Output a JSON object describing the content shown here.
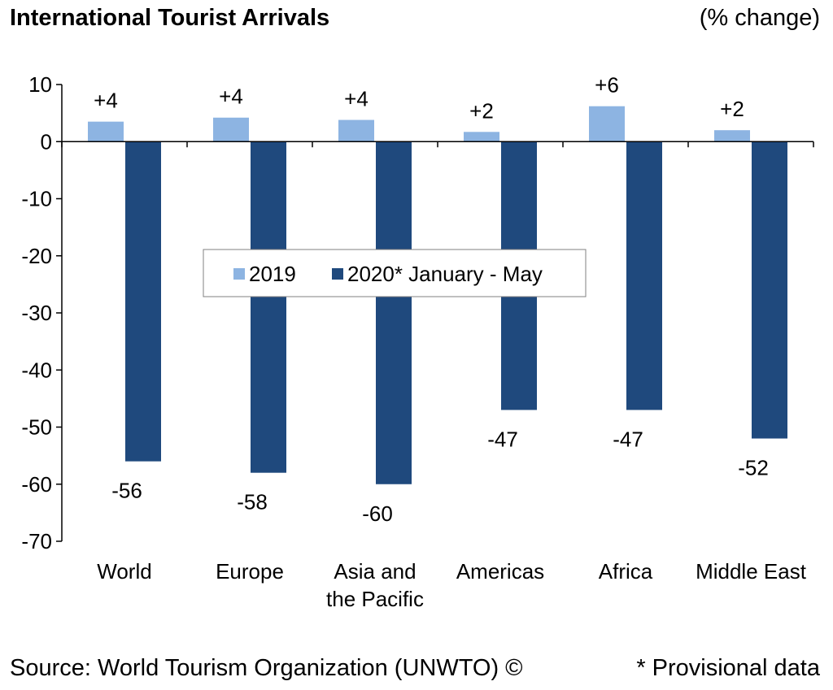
{
  "header": {
    "title": "International Tourist Arrivals",
    "unit": "(% change)"
  },
  "footer": {
    "source": "Source: World Tourism Organization (UNWTO) ©",
    "note": "* Provisional data"
  },
  "colors": {
    "series_2019": "#8db4e2",
    "series_2020": "#1f497d",
    "axis": "#000000"
  },
  "chart_data": {
    "type": "bar",
    "title": "International Tourist Arrivals",
    "ylabel": "(% change)",
    "ylim": [
      -70,
      10
    ],
    "yticks": [
      "10",
      "0",
      "-10",
      "-20",
      "-30",
      "-40",
      "-50",
      "-60",
      "-70"
    ],
    "grid": false,
    "legend_position": "center",
    "categories": [
      [
        "World"
      ],
      [
        "Europe"
      ],
      [
        "Asia and",
        "the Pacific"
      ],
      [
        "Americas"
      ],
      [
        "Africa"
      ],
      [
        "Middle East"
      ]
    ],
    "series": [
      {
        "name": "2019",
        "values": [
          3.5,
          4.2,
          3.8,
          1.7,
          6.2,
          2.0
        ],
        "labels": [
          "+4",
          "+4",
          "+4",
          "+2",
          "+6",
          "+2"
        ]
      },
      {
        "name": "2020* January - May",
        "values": [
          -56,
          -58,
          -60,
          -47,
          -47,
          -52
        ],
        "labels": [
          "-56",
          "-58",
          "-60",
          "-47",
          "-47",
          "-52"
        ]
      }
    ]
  }
}
